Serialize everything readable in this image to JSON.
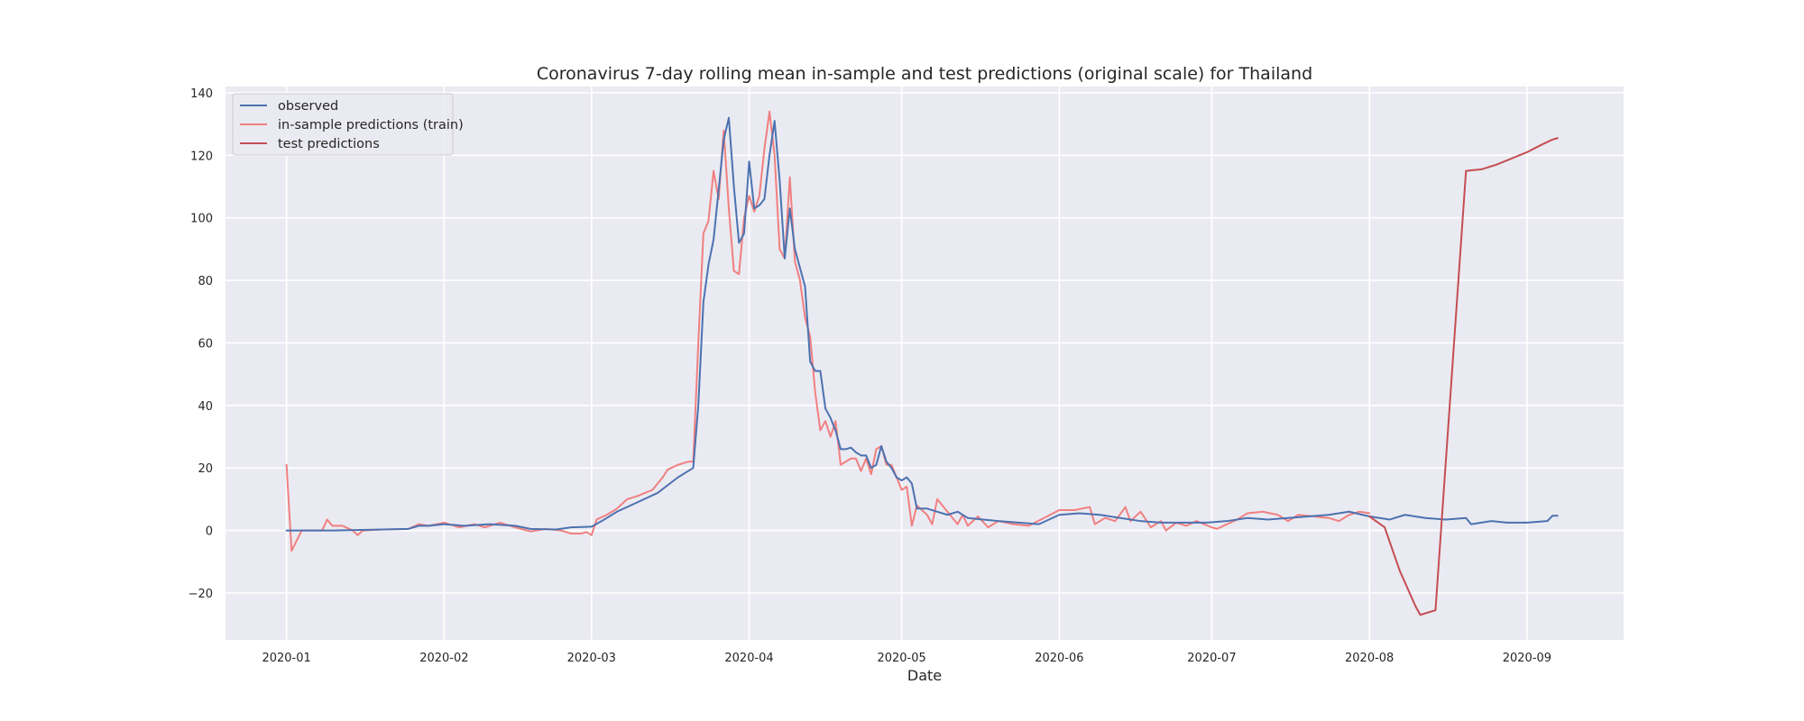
{
  "chart_data": {
    "type": "line",
    "title": "Coronavirus 7-day rolling mean in-sample and test predictions (original scale) for Thailand",
    "xlabel": "Date",
    "ylabel": "",
    "x_type": "date",
    "xlim": [
      "2019-12-20",
      "2020-09-20"
    ],
    "ylim": [
      -35,
      142
    ],
    "x_ticks": [
      "2020-01-01",
      "2020-02-01",
      "2020-03-01",
      "2020-04-01",
      "2020-05-01",
      "2020-06-01",
      "2020-07-01",
      "2020-08-01",
      "2020-09-01"
    ],
    "x_tick_labels": [
      "2020-01",
      "2020-02",
      "2020-03",
      "2020-04",
      "2020-05",
      "2020-06",
      "2020-07",
      "2020-08",
      "2020-09"
    ],
    "y_ticks": [
      -20,
      0,
      20,
      40,
      60,
      80,
      100,
      120,
      140
    ],
    "y_tick_labels": [
      "−20",
      "0",
      "20",
      "40",
      "60",
      "80",
      "100",
      "120",
      "140"
    ],
    "grid": true,
    "legend_position": "top-left",
    "series": [
      {
        "name": "observed",
        "color": "#4c72b0",
        "points": [
          [
            "2020-01-01",
            0
          ],
          [
            "2020-01-10",
            0
          ],
          [
            "2020-01-20",
            0.3
          ],
          [
            "2020-01-25",
            0.5
          ],
          [
            "2020-01-27",
            1.5
          ],
          [
            "2020-01-29",
            1.5
          ],
          [
            "2020-02-01",
            2
          ],
          [
            "2020-02-05",
            1.5
          ],
          [
            "2020-02-10",
            2
          ],
          [
            "2020-02-15",
            1.5
          ],
          [
            "2020-02-18",
            0.5
          ],
          [
            "2020-02-23",
            0.3
          ],
          [
            "2020-02-26",
            1
          ],
          [
            "2020-03-01",
            1.2
          ],
          [
            "2020-03-03",
            3
          ],
          [
            "2020-03-06",
            6
          ],
          [
            "2020-03-10",
            9
          ],
          [
            "2020-03-14",
            12
          ],
          [
            "2020-03-18",
            17
          ],
          [
            "2020-03-21",
            20
          ],
          [
            "2020-03-22",
            40
          ],
          [
            "2020-03-23",
            73
          ],
          [
            "2020-03-24",
            85
          ],
          [
            "2020-03-25",
            93
          ],
          [
            "2020-03-26",
            109
          ],
          [
            "2020-03-27",
            125
          ],
          [
            "2020-03-28",
            132
          ],
          [
            "2020-03-29",
            110
          ],
          [
            "2020-03-30",
            92
          ],
          [
            "2020-03-31",
            95
          ],
          [
            "2020-04-01",
            118
          ],
          [
            "2020-04-02",
            103
          ],
          [
            "2020-04-03",
            104
          ],
          [
            "2020-04-04",
            106
          ],
          [
            "2020-04-05",
            120
          ],
          [
            "2020-04-06",
            131
          ],
          [
            "2020-04-07",
            112
          ],
          [
            "2020-04-08",
            87
          ],
          [
            "2020-04-09",
            103
          ],
          [
            "2020-04-10",
            90
          ],
          [
            "2020-04-11",
            84
          ],
          [
            "2020-04-12",
            78
          ],
          [
            "2020-04-13",
            54
          ],
          [
            "2020-04-14",
            51
          ],
          [
            "2020-04-15",
            51
          ],
          [
            "2020-04-16",
            39
          ],
          [
            "2020-04-17",
            36
          ],
          [
            "2020-04-18",
            32
          ],
          [
            "2020-04-19",
            26
          ],
          [
            "2020-04-20",
            26
          ],
          [
            "2020-04-21",
            26.5
          ],
          [
            "2020-04-22",
            25
          ],
          [
            "2020-04-23",
            24
          ],
          [
            "2020-04-24",
            24
          ],
          [
            "2020-04-25",
            20
          ],
          [
            "2020-04-26",
            21
          ],
          [
            "2020-04-27",
            27
          ],
          [
            "2020-04-28",
            22
          ],
          [
            "2020-04-29",
            20
          ],
          [
            "2020-04-30",
            17
          ],
          [
            "2020-05-01",
            16
          ],
          [
            "2020-05-02",
            17
          ],
          [
            "2020-05-03",
            15
          ],
          [
            "2020-05-04",
            7
          ],
          [
            "2020-05-06",
            7
          ],
          [
            "2020-05-08",
            6
          ],
          [
            "2020-05-10",
            5
          ],
          [
            "2020-05-12",
            6
          ],
          [
            "2020-05-14",
            4
          ],
          [
            "2020-05-17",
            3.5
          ],
          [
            "2020-05-20",
            3
          ],
          [
            "2020-05-24",
            2.5
          ],
          [
            "2020-05-28",
            2
          ],
          [
            "2020-06-01",
            5
          ],
          [
            "2020-06-05",
            5.5
          ],
          [
            "2020-06-09",
            5
          ],
          [
            "2020-06-13",
            4
          ],
          [
            "2020-06-17",
            3
          ],
          [
            "2020-06-21",
            2.5
          ],
          [
            "2020-06-25",
            2.5
          ],
          [
            "2020-06-30",
            2.5
          ],
          [
            "2020-07-04",
            3
          ],
          [
            "2020-07-08",
            4
          ],
          [
            "2020-07-12",
            3.5
          ],
          [
            "2020-07-16",
            4
          ],
          [
            "2020-07-20",
            4.5
          ],
          [
            "2020-07-24",
            5
          ],
          [
            "2020-07-28",
            6
          ],
          [
            "2020-08-01",
            4.5
          ],
          [
            "2020-08-05",
            3.5
          ],
          [
            "2020-08-08",
            5
          ],
          [
            "2020-08-12",
            4
          ],
          [
            "2020-08-16",
            3.5
          ],
          [
            "2020-08-20",
            4
          ],
          [
            "2020-08-21",
            2
          ],
          [
            "2020-08-25",
            3
          ],
          [
            "2020-08-28",
            2.5
          ],
          [
            "2020-09-01",
            2.5
          ],
          [
            "2020-09-05",
            3
          ],
          [
            "2020-09-06",
            4.7
          ],
          [
            "2020-09-07",
            4.7
          ]
        ]
      },
      {
        "name": "in-sample predictions (train)",
        "color": "#f08080",
        "points": [
          [
            "2020-01-01",
            21
          ],
          [
            "2020-01-02",
            -6.5
          ],
          [
            "2020-01-04",
            0
          ],
          [
            "2020-01-08",
            0
          ],
          [
            "2020-01-09",
            3.5
          ],
          [
            "2020-01-10",
            1.5
          ],
          [
            "2020-01-12",
            1.5
          ],
          [
            "2020-01-14",
            0
          ],
          [
            "2020-01-15",
            -1.5
          ],
          [
            "2020-01-16",
            0
          ],
          [
            "2020-01-20",
            0.3
          ],
          [
            "2020-01-25",
            0.5
          ],
          [
            "2020-01-27",
            2
          ],
          [
            "2020-01-29",
            1.5
          ],
          [
            "2020-02-01",
            2.5
          ],
          [
            "2020-02-04",
            1
          ],
          [
            "2020-02-07",
            2
          ],
          [
            "2020-02-09",
            1
          ],
          [
            "2020-02-12",
            2.5
          ],
          [
            "2020-02-15",
            1
          ],
          [
            "2020-02-18",
            -0.3
          ],
          [
            "2020-02-21",
            0.5
          ],
          [
            "2020-02-24",
            0
          ],
          [
            "2020-02-26",
            -1
          ],
          [
            "2020-02-28",
            -1
          ],
          [
            "2020-02-29",
            -0.5
          ],
          [
            "2020-03-01",
            -1.5
          ],
          [
            "2020-03-02",
            3.5
          ],
          [
            "2020-03-04",
            5
          ],
          [
            "2020-03-06",
            7
          ],
          [
            "2020-03-08",
            10
          ],
          [
            "2020-03-10",
            11
          ],
          [
            "2020-03-13",
            13
          ],
          [
            "2020-03-15",
            17
          ],
          [
            "2020-03-16",
            19.5
          ],
          [
            "2020-03-18",
            21
          ],
          [
            "2020-03-20",
            22
          ],
          [
            "2020-03-21",
            22
          ],
          [
            "2020-03-22",
            60
          ],
          [
            "2020-03-23",
            95
          ],
          [
            "2020-03-24",
            99
          ],
          [
            "2020-03-25",
            115
          ],
          [
            "2020-03-26",
            106
          ],
          [
            "2020-03-27",
            128
          ],
          [
            "2020-03-28",
            103
          ],
          [
            "2020-03-29",
            83
          ],
          [
            "2020-03-30",
            82
          ],
          [
            "2020-03-31",
            100
          ],
          [
            "2020-04-01",
            107
          ],
          [
            "2020-04-02",
            102
          ],
          [
            "2020-04-03",
            107
          ],
          [
            "2020-04-04",
            122
          ],
          [
            "2020-04-05",
            134
          ],
          [
            "2020-04-06",
            120
          ],
          [
            "2020-04-07",
            90
          ],
          [
            "2020-04-08",
            87
          ],
          [
            "2020-04-09",
            113
          ],
          [
            "2020-04-10",
            86
          ],
          [
            "2020-04-11",
            80
          ],
          [
            "2020-04-12",
            68
          ],
          [
            "2020-04-13",
            62
          ],
          [
            "2020-04-14",
            44
          ],
          [
            "2020-04-15",
            32
          ],
          [
            "2020-04-16",
            35
          ],
          [
            "2020-04-17",
            30
          ],
          [
            "2020-04-18",
            35
          ],
          [
            "2020-04-19",
            21
          ],
          [
            "2020-04-20",
            22
          ],
          [
            "2020-04-21",
            23
          ],
          [
            "2020-04-22",
            23
          ],
          [
            "2020-04-23",
            19
          ],
          [
            "2020-04-24",
            23
          ],
          [
            "2020-04-25",
            18
          ],
          [
            "2020-04-26",
            26
          ],
          [
            "2020-04-27",
            27
          ],
          [
            "2020-04-28",
            21
          ],
          [
            "2020-04-29",
            21
          ],
          [
            "2020-04-30",
            17
          ],
          [
            "2020-05-01",
            13
          ],
          [
            "2020-05-02",
            14
          ],
          [
            "2020-05-03",
            1.5
          ],
          [
            "2020-05-04",
            8
          ],
          [
            "2020-05-06",
            5
          ],
          [
            "2020-05-07",
            2
          ],
          [
            "2020-05-08",
            10
          ],
          [
            "2020-05-10",
            6
          ],
          [
            "2020-05-12",
            2
          ],
          [
            "2020-05-13",
            5
          ],
          [
            "2020-05-14",
            1.5
          ],
          [
            "2020-05-16",
            4.5
          ],
          [
            "2020-05-18",
            1
          ],
          [
            "2020-05-20",
            3
          ],
          [
            "2020-05-23",
            2
          ],
          [
            "2020-05-26",
            1.5
          ],
          [
            "2020-05-29",
            4
          ],
          [
            "2020-06-01",
            6.5
          ],
          [
            "2020-06-04",
            6.5
          ],
          [
            "2020-06-07",
            7.5
          ],
          [
            "2020-06-08",
            2
          ],
          [
            "2020-06-10",
            4
          ],
          [
            "2020-06-12",
            3
          ],
          [
            "2020-06-14",
            7.5
          ],
          [
            "2020-06-15",
            3
          ],
          [
            "2020-06-17",
            6
          ],
          [
            "2020-06-19",
            1
          ],
          [
            "2020-06-21",
            3
          ],
          [
            "2020-06-22",
            0
          ],
          [
            "2020-06-24",
            2.5
          ],
          [
            "2020-06-26",
            1.5
          ],
          [
            "2020-06-28",
            3
          ],
          [
            "2020-07-01",
            1
          ],
          [
            "2020-07-02",
            0.5
          ],
          [
            "2020-07-04",
            2
          ],
          [
            "2020-07-06",
            3.5
          ],
          [
            "2020-07-08",
            5.5
          ],
          [
            "2020-07-11",
            6
          ],
          [
            "2020-07-14",
            5
          ],
          [
            "2020-07-16",
            3
          ],
          [
            "2020-07-18",
            5
          ],
          [
            "2020-07-21",
            4.5
          ],
          [
            "2020-07-24",
            4
          ],
          [
            "2020-07-26",
            3
          ],
          [
            "2020-07-28",
            5
          ],
          [
            "2020-07-30",
            6
          ],
          [
            "2020-08-01",
            5.5
          ]
        ]
      },
      {
        "name": "test predictions",
        "color": "#c44e52",
        "points": [
          [
            "2020-08-01",
            4.5
          ],
          [
            "2020-08-04",
            1
          ],
          [
            "2020-08-07",
            -13
          ],
          [
            "2020-08-10",
            -24
          ],
          [
            "2020-08-11",
            -27
          ],
          [
            "2020-08-14",
            -25.5
          ],
          [
            "2020-08-20",
            115
          ],
          [
            "2020-08-23",
            115.5
          ],
          [
            "2020-08-26",
            117
          ],
          [
            "2020-08-29",
            119
          ],
          [
            "2020-09-01",
            121
          ],
          [
            "2020-09-04",
            123.5
          ],
          [
            "2020-09-06",
            125
          ],
          [
            "2020-09-07",
            125.5
          ]
        ]
      }
    ]
  }
}
